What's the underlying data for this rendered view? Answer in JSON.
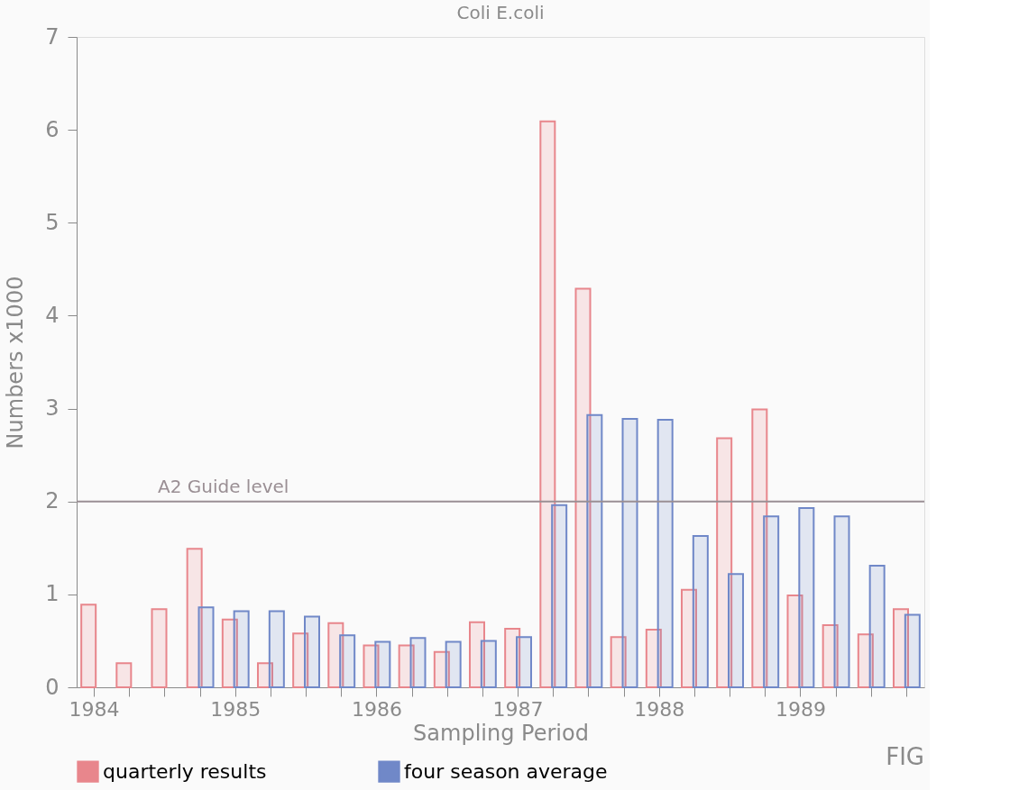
{
  "chart_data": {
    "type": "bar",
    "title": "Coli E.coli",
    "xlabel": "Sampling Period",
    "ylabel": "Numbers x1000",
    "categories": [
      "1984",
      null,
      null,
      null,
      "1985",
      null,
      null,
      null,
      "1986",
      null,
      null,
      null,
      "1987",
      null,
      null,
      null,
      "1988",
      null,
      null,
      null,
      "1989",
      null,
      null,
      null
    ],
    "series": [
      {
        "name": "quarterly results",
        "color": "#e8868c",
        "values": [
          0.89,
          0.26,
          0.84,
          1.49,
          0.73,
          0.26,
          0.58,
          0.69,
          0.45,
          0.45,
          0.38,
          0.7,
          0.63,
          6.09,
          4.29,
          0.54,
          0.62,
          1.05,
          2.68,
          2.99,
          0.99,
          0.67,
          0.57,
          0.84
        ]
      },
      {
        "name": "four season average",
        "color": "#7088c8",
        "values": [
          null,
          null,
          null,
          0.86,
          0.82,
          0.82,
          0.76,
          0.56,
          0.49,
          0.53,
          0.49,
          0.5,
          0.54,
          1.96,
          2.93,
          2.89,
          2.88,
          1.63,
          1.22,
          1.84,
          1.93,
          1.84,
          1.31,
          0.78
        ]
      }
    ],
    "ylim": [
      0,
      7
    ],
    "yticks": [
      0,
      1,
      2,
      3,
      4,
      5,
      6,
      7
    ],
    "grid": false,
    "legend": "bottom",
    "ref_lines": [
      {
        "axis": "y",
        "value": 2,
        "label": "A2 Guide level",
        "color": "#9a8f94"
      }
    ],
    "annotations": [
      "FIG"
    ]
  }
}
